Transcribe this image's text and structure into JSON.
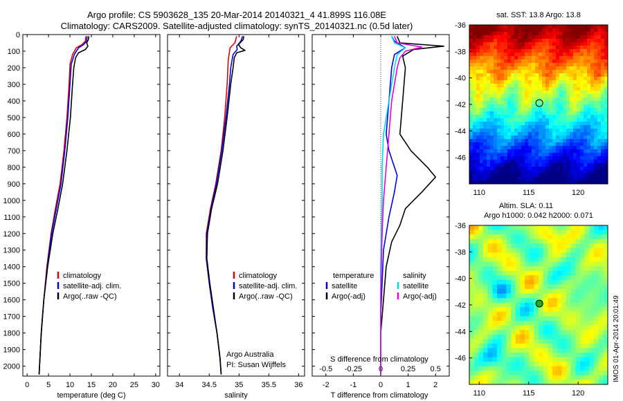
{
  "figure": {
    "title_line1": "Argo profile: CS 5903628_135 20-Mar-2014 20140321_4 41.899S 116.08E",
    "title_line2": "Climatology: CARS2009. Satellite-adjusted climatology: synTS_20140321.nc (0.5d later)",
    "stamp": "IMOS 01-Apr-2014 20:01:49",
    "credit_line1": "Argo Australia",
    "credit_line2": "PI: Susan Wijffels"
  },
  "colors": {
    "climatology": "#e00000",
    "satellite": "#0000e0",
    "argo": "#000000",
    "cyan": "#00d8e8",
    "magenta": "#e000e0"
  },
  "chart_data": [
    {
      "type": "line",
      "name": "temperature",
      "xlabel": "temperature (deg C)",
      "xlim": [
        -1,
        31
      ],
      "ylim": [
        0,
        2060
      ],
      "y_reversed": true,
      "xticks": [
        0,
        5,
        10,
        15,
        20,
        25,
        30
      ],
      "yticks": [
        0,
        100,
        200,
        300,
        400,
        500,
        600,
        700,
        800,
        900,
        1000,
        1100,
        1200,
        1300,
        1400,
        1500,
        1600,
        1700,
        1800,
        1900,
        2000
      ],
      "legend": [
        "climatology",
        "satellite-adj. clim.",
        "Argo(..raw -QC)"
      ],
      "legend_loc": "lower-right",
      "series": [
        {
          "name": "climatology",
          "color_key": "climatology",
          "points": [
            [
              13.7,
              10
            ],
            [
              13.6,
              40
            ],
            [
              12.8,
              60
            ],
            [
              11.5,
              80
            ],
            [
              10.6,
              120
            ],
            [
              10.0,
              180
            ],
            [
              9.8,
              300
            ],
            [
              9.3,
              500
            ],
            [
              8.6,
              700
            ],
            [
              7.7,
              900
            ],
            [
              6.6,
              1050
            ],
            [
              5.6,
              1200
            ],
            [
              4.6,
              1400
            ],
            [
              3.9,
              1600
            ],
            [
              3.3,
              1800
            ],
            [
              2.9,
              2000
            ],
            [
              2.8,
              2050
            ]
          ]
        },
        {
          "name": "satellite-adj. clim.",
          "color_key": "satellite",
          "points": [
            [
              14.0,
              10
            ],
            [
              13.9,
              40
            ],
            [
              13.2,
              60
            ],
            [
              12.0,
              80
            ],
            [
              11.0,
              120
            ],
            [
              10.3,
              180
            ],
            [
              10.0,
              300
            ],
            [
              9.5,
              500
            ],
            [
              8.8,
              700
            ],
            [
              7.9,
              900
            ],
            [
              6.8,
              1050
            ],
            [
              5.7,
              1200
            ],
            [
              4.7,
              1400
            ],
            [
              3.9,
              1600
            ],
            [
              3.3,
              1800
            ],
            [
              2.9,
              2000
            ],
            [
              2.8,
              2050
            ]
          ]
        },
        {
          "name": "Argo(..raw -QC)",
          "color_key": "argo",
          "points": [
            [
              14.4,
              10
            ],
            [
              14.3,
              30
            ],
            [
              13.9,
              50
            ],
            [
              14.2,
              70
            ],
            [
              13.6,
              90
            ],
            [
              12.0,
              110
            ],
            [
              11.3,
              140
            ],
            [
              10.9,
              200
            ],
            [
              10.6,
              300
            ],
            [
              10.1,
              500
            ],
            [
              9.3,
              700
            ],
            [
              8.3,
              900
            ],
            [
              7.2,
              1050
            ],
            [
              6.0,
              1200
            ],
            [
              4.8,
              1400
            ],
            [
              3.9,
              1600
            ],
            [
              3.3,
              1800
            ],
            [
              2.9,
              2000
            ],
            [
              2.8,
              2050
            ]
          ]
        }
      ]
    },
    {
      "type": "line",
      "name": "salinity",
      "xlabel": "salinity",
      "xlim": [
        33.8,
        36.1
      ],
      "ylim": [
        0,
        2060
      ],
      "y_reversed": true,
      "xticks": [
        34,
        34.5,
        35,
        35.5,
        36
      ],
      "legend": [
        "climatology",
        "satellite-adj. clim.",
        "Argo(..raw -QC)"
      ],
      "legend_loc": "lower-right",
      "series": [
        {
          "name": "climatology",
          "color_key": "climatology",
          "points": [
            [
              34.96,
              10
            ],
            [
              34.93,
              50
            ],
            [
              34.85,
              80
            ],
            [
              34.82,
              150
            ],
            [
              34.8,
              300
            ],
            [
              34.76,
              500
            ],
            [
              34.7,
              700
            ],
            [
              34.61,
              900
            ],
            [
              34.52,
              1050
            ],
            [
              34.45,
              1200
            ],
            [
              34.45,
              1350
            ],
            [
              34.5,
              1500
            ],
            [
              34.56,
              1650
            ],
            [
              34.63,
              1800
            ],
            [
              34.68,
              1950
            ],
            [
              34.7,
              2050
            ]
          ]
        },
        {
          "name": "satellite-adj. clim.",
          "color_key": "satellite",
          "points": [
            [
              35.06,
              10
            ],
            [
              35.03,
              40
            ],
            [
              34.96,
              70
            ],
            [
              34.97,
              90
            ],
            [
              34.9,
              120
            ],
            [
              34.86,
              200
            ],
            [
              34.84,
              300
            ],
            [
              34.78,
              500
            ],
            [
              34.71,
              700
            ],
            [
              34.62,
              900
            ],
            [
              34.53,
              1050
            ],
            [
              34.46,
              1200
            ],
            [
              34.45,
              1350
            ],
            [
              34.5,
              1500
            ],
            [
              34.56,
              1650
            ],
            [
              34.63,
              1800
            ],
            [
              34.68,
              1950
            ],
            [
              34.7,
              2050
            ]
          ]
        },
        {
          "name": "Argo(..raw -QC)",
          "color_key": "argo",
          "points": [
            [
              35.08,
              10
            ],
            [
              35.07,
              30
            ],
            [
              34.99,
              60
            ],
            [
              35.03,
              80
            ],
            [
              35.1,
              95
            ],
            [
              34.96,
              110
            ],
            [
              34.92,
              140
            ],
            [
              34.9,
              200
            ],
            [
              34.86,
              300
            ],
            [
              34.8,
              500
            ],
            [
              34.73,
              700
            ],
            [
              34.64,
              900
            ],
            [
              34.54,
              1050
            ],
            [
              34.47,
              1200
            ],
            [
              34.46,
              1350
            ],
            [
              34.51,
              1500
            ],
            [
              34.57,
              1650
            ],
            [
              34.63,
              1800
            ],
            [
              34.68,
              1950
            ],
            [
              34.7,
              2050
            ]
          ]
        }
      ]
    },
    {
      "type": "line",
      "name": "differences",
      "xlabel": "T difference from climatology",
      "x2label": "S difference from climatology",
      "xlim": [
        -2.5,
        2.5
      ],
      "ylim": [
        0,
        2060
      ],
      "y_reversed": true,
      "xticks": [
        -2,
        -1,
        0,
        1,
        2
      ],
      "x2ticks": [
        "-0.5",
        "-0.25",
        "0",
        "0.25",
        "0.5"
      ],
      "x2tick_positions": [
        -2,
        -1,
        0,
        1,
        2
      ],
      "legend_temperature_header": "temperature",
      "legend_salinity_header": "salinity",
      "legend_temperature": [
        "satellite",
        "Argo(-adj)"
      ],
      "legend_salinity": [
        "satellite",
        "Argo(-adj)"
      ],
      "series": [
        {
          "name": "temperature satellite",
          "color_key": "satellite",
          "points": [
            [
              0.4,
              10
            ],
            [
              0.5,
              40
            ],
            [
              0.9,
              80
            ],
            [
              0.5,
              120
            ],
            [
              0.4,
              200
            ],
            [
              0.3,
              400
            ],
            [
              0.2,
              600
            ],
            [
              0.3,
              700
            ],
            [
              0.6,
              850
            ],
            [
              0.5,
              950
            ],
            [
              0.3,
              1100
            ],
            [
              0.1,
              1300
            ],
            [
              0.05,
              1500
            ],
            [
              0,
              1700
            ],
            [
              0,
              2000
            ],
            [
              0,
              2050
            ]
          ]
        },
        {
          "name": "temperature Argo(-adj)",
          "color_key": "argo",
          "points": [
            [
              0.6,
              10
            ],
            [
              0.7,
              50
            ],
            [
              2.3,
              70
            ],
            [
              1.2,
              90
            ],
            [
              0.8,
              130
            ],
            [
              0.9,
              200
            ],
            [
              0.8,
              400
            ],
            [
              0.7,
              600
            ],
            [
              1.1,
              700
            ],
            [
              1.7,
              800
            ],
            [
              2.0,
              860
            ],
            [
              1.5,
              950
            ],
            [
              0.9,
              1050
            ],
            [
              0.7,
              1150
            ],
            [
              0.4,
              1250
            ],
            [
              0.2,
              1400
            ],
            [
              0.1,
              1600
            ],
            [
              0,
              1800
            ],
            [
              0,
              2050
            ]
          ]
        },
        {
          "name": "salinity satellite",
          "color_key": "cyan",
          "points": [
            [
              0.4,
              10
            ],
            [
              0.5,
              50
            ],
            [
              0.9,
              80
            ],
            [
              0.6,
              120
            ],
            [
              0.5,
              200
            ],
            [
              0.3,
              400
            ],
            [
              0.1,
              600
            ],
            [
              0.05,
              800
            ],
            [
              0.05,
              1000
            ],
            [
              0.02,
              1200
            ],
            [
              0,
              1400
            ],
            [
              0,
              2050
            ]
          ]
        },
        {
          "name": "salinity Argo(-adj)",
          "color_key": "magenta",
          "points": [
            [
              0.5,
              10
            ],
            [
              0.6,
              50
            ],
            [
              1.5,
              75
            ],
            [
              0.9,
              100
            ],
            [
              0.7,
              140
            ],
            [
              0.6,
              200
            ],
            [
              0.4,
              400
            ],
            [
              0.3,
              600
            ],
            [
              0.2,
              800
            ],
            [
              0.1,
              1000
            ],
            [
              0.05,
              1200
            ],
            [
              0.02,
              1400
            ],
            [
              0,
              1600
            ],
            [
              0,
              2050
            ]
          ]
        }
      ]
    },
    {
      "type": "heatmap",
      "name": "sst_map",
      "title": "sat. SST: 13.8  Argo: 13.8",
      "xlim": [
        109,
        123
      ],
      "ylim": [
        -48,
        -36
      ],
      "xticks": [
        110,
        115,
        120
      ],
      "yticks": [
        -36,
        -38,
        -40,
        -42,
        -44,
        -46
      ],
      "marker": [
        116.08,
        -41.899
      ]
    },
    {
      "type": "heatmap",
      "name": "sla_map",
      "title": "Altim. SLA: 0.11",
      "subtitle": "Argo h1000: 0.042  h2000: 0.071",
      "xlim": [
        109,
        123
      ],
      "ylim": [
        -48,
        -36
      ],
      "xticks": [
        110,
        115,
        120
      ],
      "yticks": [
        -36,
        -38,
        -40,
        -42,
        -44,
        -46
      ],
      "marker": [
        116.08,
        -41.899
      ]
    }
  ]
}
